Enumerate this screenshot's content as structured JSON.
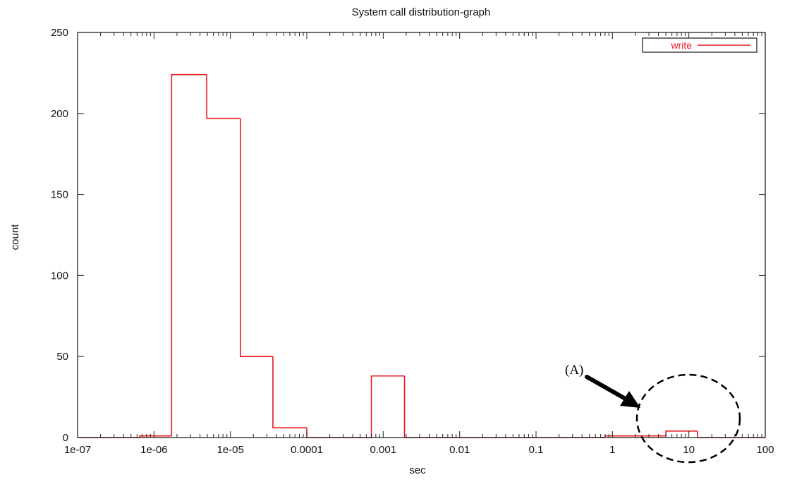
{
  "chart_data": {
    "type": "bar",
    "title": "System call distribution-graph",
    "xlabel": "sec",
    "ylabel": "count",
    "x_scale": "log",
    "xlim": [
      1e-07,
      100
    ],
    "ylim": [
      0,
      250
    ],
    "x_ticks": [
      {
        "value": 1e-07,
        "label": "1e-07"
      },
      {
        "value": 1e-06,
        "label": "1e-06"
      },
      {
        "value": 1e-05,
        "label": "1e-05"
      },
      {
        "value": 0.0001,
        "label": "0.0001"
      },
      {
        "value": 0.001,
        "label": "0.001"
      },
      {
        "value": 0.01,
        "label": "0.01"
      },
      {
        "value": 0.1,
        "label": "0.1"
      },
      {
        "value": 1,
        "label": "1"
      },
      {
        "value": 10,
        "label": "10"
      },
      {
        "value": 100,
        "label": "100"
      }
    ],
    "y_ticks": [
      {
        "value": 0,
        "label": "0"
      },
      {
        "value": 50,
        "label": "50"
      },
      {
        "value": 100,
        "label": "100"
      },
      {
        "value": 150,
        "label": "150"
      },
      {
        "value": 200,
        "label": "200"
      },
      {
        "value": 250,
        "label": "250"
      }
    ],
    "grid": false,
    "legend_position": "top-right",
    "color": "#e8191f",
    "series": [
      {
        "name": "write",
        "bins": [
          {
            "x0": 1e-07,
            "x1": 6.5e-07,
            "value": 0
          },
          {
            "x0": 6.5e-07,
            "x1": 1.7e-06,
            "value": 1
          },
          {
            "x0": 1.7e-06,
            "x1": 4.9e-06,
            "value": 224
          },
          {
            "x0": 4.9e-06,
            "x1": 1.35e-05,
            "value": 197
          },
          {
            "x0": 1.35e-05,
            "x1": 3.6e-05,
            "value": 50
          },
          {
            "x0": 3.6e-05,
            "x1": 0.0001,
            "value": 6
          },
          {
            "x0": 0.0001,
            "x1": 0.0007,
            "value": 0
          },
          {
            "x0": 0.0007,
            "x1": 0.0019,
            "value": 38
          },
          {
            "x0": 0.0019,
            "x1": 0.8,
            "value": 0
          },
          {
            "x0": 0.8,
            "x1": 5,
            "value": 1
          },
          {
            "x0": 5,
            "x1": 13,
            "value": 4
          },
          {
            "x0": 13,
            "x1": 100,
            "value": 0
          }
        ]
      }
    ],
    "annotations": [
      {
        "label": "(A)",
        "target": {
          "x": 8,
          "y": 4
        }
      }
    ]
  }
}
